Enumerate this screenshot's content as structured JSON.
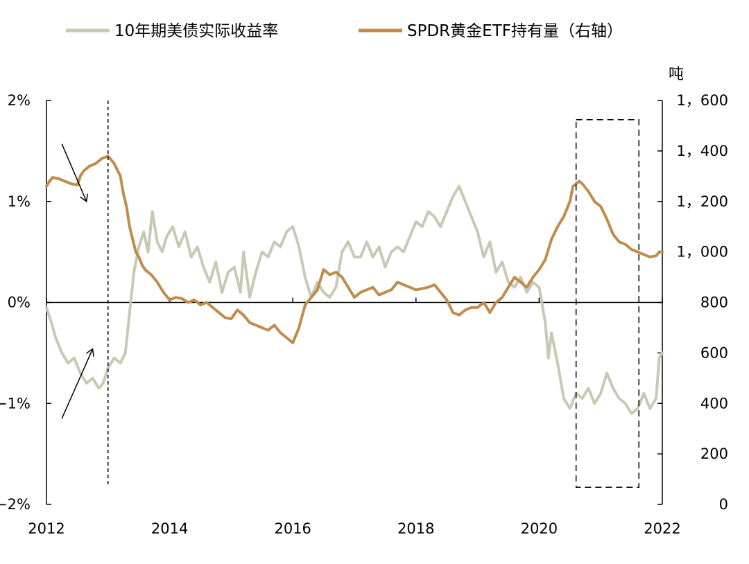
{
  "chart_data": {
    "type": "line",
    "title": "",
    "legend": {
      "placement": "top-center",
      "entries": [
        "10年期美债实际收益率",
        "SPDR黄金ETF持有量（右轴）"
      ]
    },
    "colors": {
      "real_yield": "#c8c9b4",
      "spdr": "#c08c4c",
      "axis": "#000000"
    },
    "x_axis": {
      "range": [
        2012,
        2022
      ],
      "ticks": [
        "2012",
        "2014",
        "2016",
        "2018",
        "2020",
        "2022"
      ]
    },
    "y_left": {
      "range": [
        -2,
        2
      ],
      "ticks": [
        "2%",
        "1%",
        "0%",
        "−1%",
        "−2%"
      ],
      "tick_values": [
        2,
        1,
        0,
        -1,
        -2
      ],
      "unit": "%"
    },
    "y_right": {
      "range": [
        0,
        1600
      ],
      "ticks": [
        "1，600",
        "1，400",
        "1，200",
        "1，000",
        "800",
        "600",
        "400",
        "200",
        "0"
      ],
      "tick_values": [
        1600,
        1400,
        1200,
        1000,
        800,
        600,
        400,
        200,
        0
      ],
      "unit_label": "吨"
    },
    "annotations": {
      "vline_year": 2013.0,
      "vline_y_range": [
        -1.8,
        2.0
      ],
      "box": {
        "x_range": [
          2020.6,
          2021.62
        ],
        "y_range": [
          -1.83,
          1.81
        ]
      },
      "arrow_down": {
        "from": [
          2012.25,
          1.57
        ],
        "to": [
          2012.65,
          1.0
        ]
      },
      "arrow_up": {
        "from": [
          2012.25,
          -1.15
        ],
        "to": [
          2012.75,
          -0.46
        ]
      }
    },
    "series": [
      {
        "name": "10年期美债实际收益率",
        "axis": "left",
        "x": [
          2012.0,
          2012.08,
          2012.15,
          2012.25,
          2012.35,
          2012.45,
          2012.55,
          2012.65,
          2012.75,
          2012.85,
          2012.92,
          2013.0,
          2013.1,
          2013.2,
          2013.28,
          2013.35,
          2013.42,
          2013.5,
          2013.58,
          2013.65,
          2013.72,
          2013.8,
          2013.88,
          2013.95,
          2014.05,
          2014.15,
          2014.25,
          2014.35,
          2014.45,
          2014.55,
          2014.65,
          2014.75,
          2014.85,
          2014.95,
          2015.05,
          2015.15,
          2015.2,
          2015.3,
          2015.4,
          2015.5,
          2015.6,
          2015.7,
          2015.8,
          2015.9,
          2016.0,
          2016.1,
          2016.2,
          2016.3,
          2016.4,
          2016.5,
          2016.6,
          2016.7,
          2016.8,
          2016.9,
          2017.0,
          2017.1,
          2017.2,
          2017.3,
          2017.4,
          2017.5,
          2017.6,
          2017.7,
          2017.8,
          2017.9,
          2018.0,
          2018.1,
          2018.2,
          2018.3,
          2018.4,
          2018.5,
          2018.6,
          2018.7,
          2018.8,
          2018.9,
          2019.0,
          2019.1,
          2019.2,
          2019.3,
          2019.4,
          2019.5,
          2019.6,
          2019.7,
          2019.8,
          2019.9,
          2020.0,
          2020.1,
          2020.15,
          2020.2,
          2020.25,
          2020.3,
          2020.4,
          2020.5,
          2020.6,
          2020.7,
          2020.8,
          2020.9,
          2021.0,
          2021.1,
          2021.2,
          2021.3,
          2021.4,
          2021.5,
          2021.6,
          2021.7,
          2021.8,
          2021.9,
          2021.95,
          2022.0
        ],
        "values": [
          -0.05,
          -0.2,
          -0.35,
          -0.5,
          -0.6,
          -0.55,
          -0.7,
          -0.8,
          -0.75,
          -0.85,
          -0.8,
          -0.65,
          -0.55,
          -0.6,
          -0.5,
          -0.1,
          0.3,
          0.55,
          0.7,
          0.5,
          0.9,
          0.6,
          0.5,
          0.65,
          0.75,
          0.55,
          0.7,
          0.45,
          0.55,
          0.35,
          0.2,
          0.4,
          0.1,
          0.3,
          0.35,
          0.1,
          0.5,
          0.05,
          0.3,
          0.5,
          0.45,
          0.6,
          0.55,
          0.7,
          0.75,
          0.55,
          0.25,
          0.05,
          0.2,
          0.1,
          0.05,
          0.15,
          0.5,
          0.6,
          0.45,
          0.45,
          0.6,
          0.45,
          0.55,
          0.35,
          0.5,
          0.55,
          0.5,
          0.65,
          0.8,
          0.75,
          0.9,
          0.85,
          0.75,
          0.9,
          1.05,
          1.15,
          1.0,
          0.85,
          0.7,
          0.45,
          0.6,
          0.3,
          0.4,
          0.2,
          0.15,
          0.25,
          0.1,
          0.2,
          0.15,
          -0.2,
          -0.55,
          -0.3,
          -0.45,
          -0.6,
          -0.95,
          -1.05,
          -0.9,
          -0.95,
          -0.85,
          -1.0,
          -0.9,
          -0.7,
          -0.85,
          -0.95,
          -1.0,
          -1.1,
          -1.05,
          -0.9,
          -1.05,
          -0.95,
          -0.55,
          -0.5
        ]
      },
      {
        "name": "SPDR黄金ETF持有量（右轴）",
        "axis": "right",
        "x": [
          2012.0,
          2012.05,
          2012.1,
          2012.2,
          2012.3,
          2012.4,
          2012.5,
          2012.55,
          2012.6,
          2012.7,
          2012.8,
          2012.9,
          2013.0,
          2013.05,
          2013.1,
          2013.2,
          2013.25,
          2013.3,
          2013.35,
          2013.4,
          2013.45,
          2013.5,
          2013.55,
          2013.6,
          2013.7,
          2013.8,
          2013.9,
          2014.0,
          2014.1,
          2014.2,
          2014.3,
          2014.4,
          2014.5,
          2014.6,
          2014.7,
          2014.8,
          2014.9,
          2015.0,
          2015.1,
          2015.2,
          2015.3,
          2015.4,
          2015.5,
          2015.6,
          2015.7,
          2015.8,
          2015.9,
          2016.0,
          2016.1,
          2016.2,
          2016.3,
          2016.4,
          2016.5,
          2016.6,
          2016.7,
          2016.8,
          2016.9,
          2017.0,
          2017.1,
          2017.2,
          2017.3,
          2017.4,
          2017.5,
          2017.6,
          2017.7,
          2017.8,
          2017.9,
          2018.0,
          2018.1,
          2018.2,
          2018.3,
          2018.4,
          2018.5,
          2018.6,
          2018.7,
          2018.8,
          2018.9,
          2019.0,
          2019.1,
          2019.2,
          2019.3,
          2019.4,
          2019.5,
          2019.6,
          2019.7,
          2019.8,
          2019.9,
          2020.0,
          2020.1,
          2020.2,
          2020.3,
          2020.4,
          2020.5,
          2020.55,
          2020.6,
          2020.65,
          2020.7,
          2020.8,
          2020.9,
          2021.0,
          2021.1,
          2021.2,
          2021.3,
          2021.4,
          2021.5,
          2021.6,
          2021.7,
          2021.8,
          2021.9,
          2021.95,
          2022.0
        ],
        "values": [
          1260,
          1280,
          1295,
          1290,
          1280,
          1270,
          1265,
          1300,
          1320,
          1340,
          1350,
          1370,
          1380,
          1365,
          1350,
          1300,
          1230,
          1180,
          1100,
          1050,
          1000,
          980,
          950,
          930,
          910,
          880,
          840,
          810,
          820,
          815,
          800,
          810,
          790,
          800,
          780,
          760,
          740,
          735,
          770,
          750,
          720,
          710,
          700,
          690,
          710,
          680,
          660,
          640,
          700,
          790,
          820,
          850,
          930,
          910,
          920,
          900,
          860,
          820,
          840,
          850,
          860,
          830,
          840,
          850,
          880,
          870,
          860,
          850,
          855,
          860,
          870,
          840,
          810,
          760,
          750,
          770,
          780,
          780,
          800,
          760,
          800,
          820,
          860,
          900,
          880,
          860,
          900,
          930,
          970,
          1050,
          1100,
          1140,
          1200,
          1260,
          1270,
          1280,
          1270,
          1240,
          1200,
          1180,
          1130,
          1070,
          1040,
          1030,
          1010,
          1000,
          990,
          980,
          985,
          1000,
          1000
        ]
      }
    ]
  }
}
